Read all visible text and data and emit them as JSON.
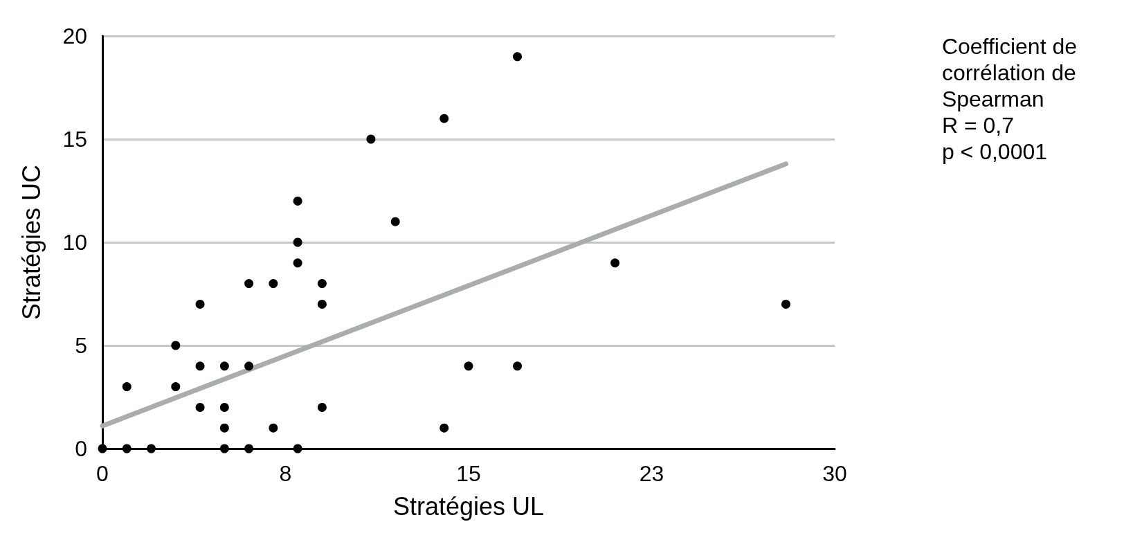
{
  "chart_data": {
    "type": "scatter",
    "xlabel": "Stratégies UL",
    "ylabel": "Stratégies UC",
    "xlim": [
      0,
      30
    ],
    "xticks": [
      0,
      {
        "value": 7.5,
        "label": "8"
      },
      15,
      {
        "value": 22.5,
        "label": "23"
      },
      30
    ],
    "ylim": [
      0,
      20
    ],
    "yticks": [
      0,
      5,
      10,
      15,
      20
    ],
    "grid": "y",
    "marker": "circle",
    "annotations": [
      "Coefficient de",
      "corrélation de",
      "Spearman",
      "R = 0,7",
      "p < 0,0001"
    ],
    "series": [
      {
        "color": "#000000",
        "x": [
          0,
          1,
          1,
          2,
          3,
          3,
          4,
          4,
          4,
          5,
          5,
          5,
          5,
          6,
          6,
          6,
          7,
          7,
          8,
          8,
          8,
          8,
          9,
          9,
          9,
          11,
          12,
          14,
          14,
          15,
          17,
          17,
          21,
          28
        ],
        "values": [
          0,
          3,
          0,
          0,
          5,
          3,
          7,
          4,
          2,
          4,
          2,
          1,
          0,
          8,
          4,
          0,
          8,
          1,
          12,
          10,
          9,
          0,
          8,
          7,
          2,
          15,
          11,
          16,
          1,
          4,
          19,
          4,
          9,
          7
        ]
      },
      {
        "type": "line",
        "color": "#a9aeaa",
        "marker": "none",
        "x": [
          0,
          28
        ],
        "values": [
          1.1,
          13.8
        ]
      }
    ]
  }
}
